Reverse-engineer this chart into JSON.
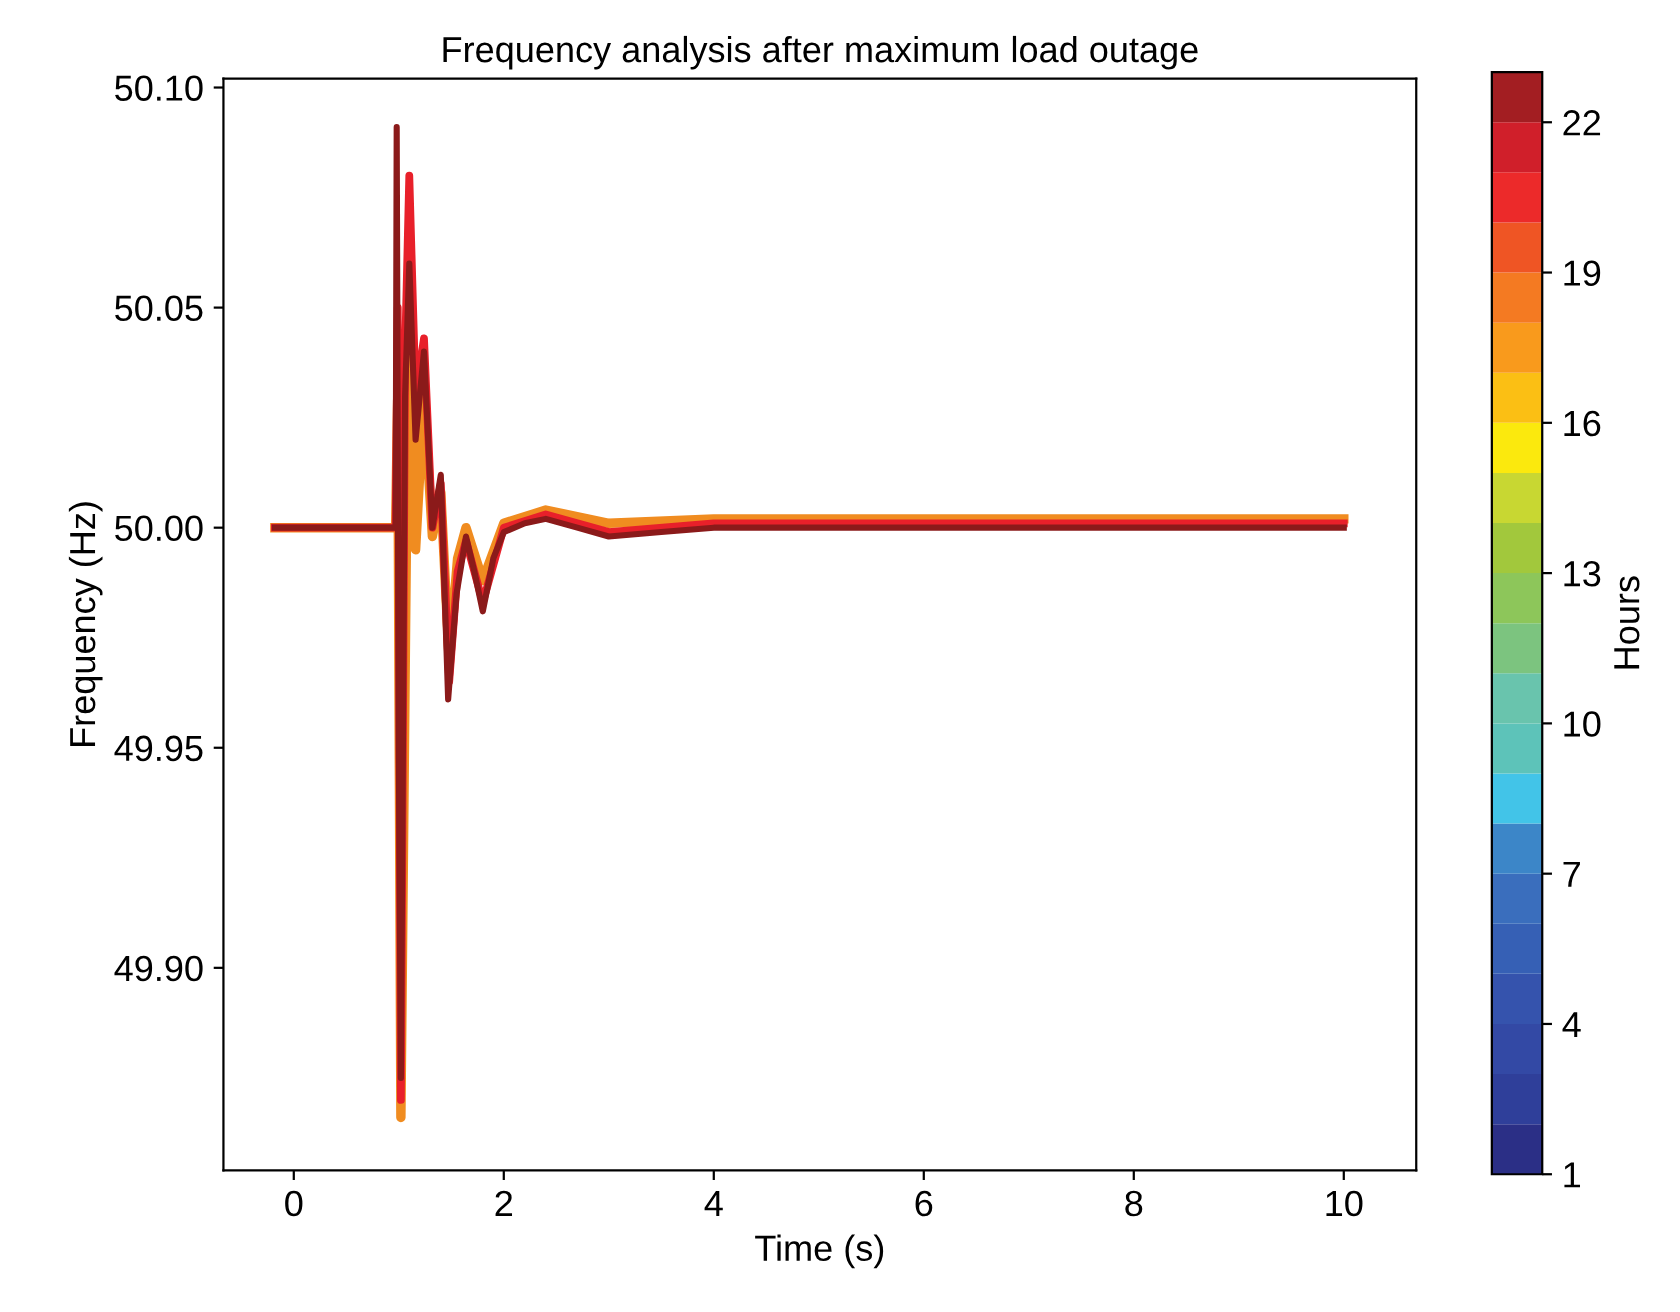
{
  "chart_data": {
    "type": "line",
    "title": "Frequency analysis after maximum load outage",
    "xlabel": "Time (s)",
    "ylabel": "Frequency (Hz)",
    "clabel": "Hours",
    "xlim": [
      -0.67,
      10.69
    ],
    "ylim": [
      49.854,
      50.102
    ],
    "xticks": [
      0,
      2,
      4,
      6,
      8,
      10
    ],
    "yticks": [
      {
        "value": 49.9,
        "label": "49.90"
      },
      {
        "value": 49.95,
        "label": "49.95"
      },
      {
        "value": 50.0,
        "label": "50.00"
      },
      {
        "value": 50.05,
        "label": "50.05"
      },
      {
        "value": 50.1,
        "label": "50.10"
      }
    ],
    "clim": [
      1,
      23
    ],
    "cticks": [
      1,
      4,
      7,
      10,
      13,
      16,
      19,
      22
    ],
    "colors": [
      "#2b2f86",
      "#2f3f9a",
      "#3349a5",
      "#3553ad",
      "#3660b5",
      "#3a6ebd",
      "#3c86c8",
      "#42c4e8",
      "#5dc3b9",
      "#69c4ad",
      "#7cc47f",
      "#8dc65a",
      "#a2c83c",
      "#c8d732",
      "#fbe90d",
      "#fbbf14",
      "#f99a1c",
      "#f47a22",
      "#ef5524",
      "#ec2a2a",
      "#d01f2a",
      "#a31e22"
    ],
    "grid": false,
    "series": [
      {
        "color": "#f08c20",
        "x": [
          -0.18,
          0.97,
          0.99,
          1.02,
          1.1,
          1.16,
          1.24,
          1.32,
          1.4,
          1.48,
          1.56,
          1.64,
          1.8,
          2.0,
          2.4,
          3,
          4,
          10
        ],
        "values": [
          50.0,
          50.0,
          50.03,
          49.866,
          50.065,
          49.995,
          50.03,
          49.998,
          50.008,
          49.97,
          49.993,
          50.0,
          49.988,
          50.001,
          50.004,
          50.001,
          50.002,
          50.002
        ]
      },
      {
        "color": "#e8202a",
        "x": [
          -0.18,
          0.97,
          0.99,
          1.02,
          1.06,
          1.1,
          1.16,
          1.24,
          1.32,
          1.4,
          1.48,
          1.56,
          1.64,
          1.8,
          2.0,
          2.4,
          3,
          4,
          10
        ],
        "values": [
          50.0,
          50.0,
          50.05,
          49.87,
          50.04,
          50.08,
          50.03,
          50.043,
          50.0,
          50.01,
          49.965,
          49.99,
          49.997,
          49.983,
          50.0,
          50.003,
          49.999,
          50.001,
          50.001
        ]
      },
      {
        "color": "#8b1a1a",
        "x": [
          -0.18,
          0.97,
          0.98,
          1.0,
          1.02,
          1.06,
          1.1,
          1.16,
          1.24,
          1.32,
          1.4,
          1.47,
          1.55,
          1.64,
          1.72,
          1.8,
          1.9,
          2.0,
          2.2,
          2.4,
          2.7,
          3.0,
          3.5,
          4,
          6,
          10
        ],
        "values": [
          50.0,
          50.0,
          50.091,
          49.95,
          49.875,
          50.03,
          50.06,
          50.02,
          50.04,
          50.0,
          50.012,
          49.961,
          49.985,
          49.998,
          49.99,
          49.981,
          49.993,
          49.999,
          50.001,
          50.002,
          50.0,
          49.998,
          49.999,
          50.0,
          50.0,
          50.0
        ]
      }
    ]
  }
}
